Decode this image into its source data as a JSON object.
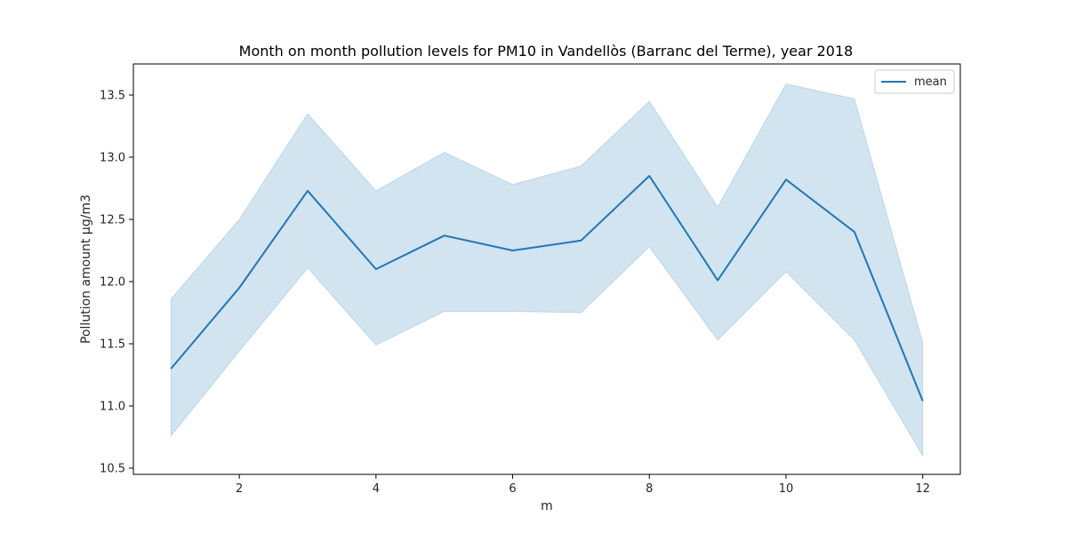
{
  "chart_data": {
    "type": "line",
    "title": "Month on month pollution levels for PM10 in Vandellòs (Barranc del Terme), year 2018",
    "xlabel": "m",
    "ylabel": "Pollution amount µg/m3",
    "xlim": [
      0.45,
      12.55
    ],
    "ylim": [
      10.45,
      13.75
    ],
    "xticks": [
      2,
      4,
      6,
      8,
      10,
      12
    ],
    "xtick_labels": [
      "2",
      "4",
      "6",
      "8",
      "10",
      "12"
    ],
    "yticks": [
      10.5,
      11.0,
      11.5,
      12.0,
      12.5,
      13.0,
      13.5
    ],
    "ytick_labels": [
      "10.5",
      "11.0",
      "11.5",
      "12.0",
      "12.5",
      "13.0",
      "13.5"
    ],
    "grid": false,
    "legend_position": "top-right",
    "x": [
      1,
      2,
      3,
      4,
      5,
      6,
      7,
      8,
      9,
      10,
      11,
      12
    ],
    "series": [
      {
        "name": "mean",
        "color": "#1f77b4",
        "values": [
          11.3,
          11.95,
          12.73,
          12.1,
          12.37,
          12.25,
          12.33,
          12.85,
          12.01,
          12.82,
          12.4,
          11.04
        ],
        "band_lower": [
          10.76,
          11.44,
          12.11,
          11.49,
          11.76,
          11.76,
          11.75,
          12.28,
          11.53,
          12.08,
          11.53,
          10.6
        ],
        "band_upper": [
          11.86,
          12.5,
          13.35,
          12.73,
          13.04,
          12.78,
          12.93,
          13.45,
          12.6,
          13.59,
          13.47,
          11.51
        ]
      }
    ],
    "band_color": "#1f77b4"
  }
}
